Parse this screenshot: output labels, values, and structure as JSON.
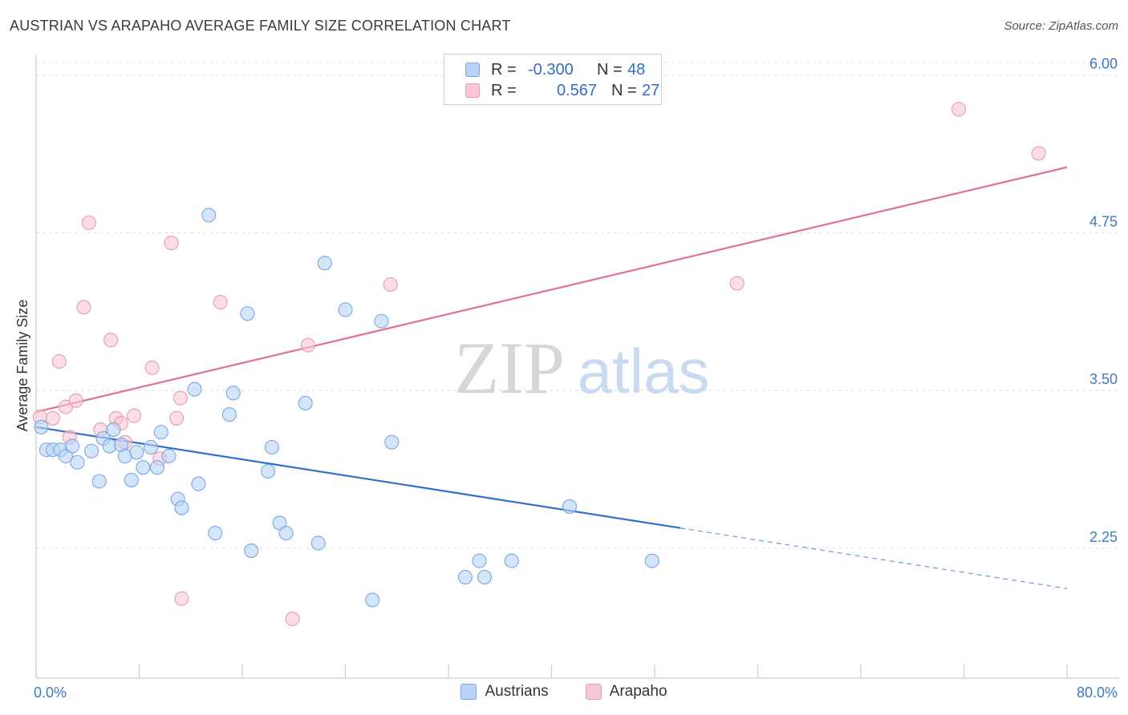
{
  "title": "AUSTRIAN VS ARAPAHO AVERAGE FAMILY SIZE CORRELATION CHART",
  "source": "Source: ZipAtlas.com",
  "watermark": {
    "zip": "ZIP",
    "atlas": "atlas"
  },
  "legend": {
    "rows": [
      {
        "r_label": "R =",
        "r_value": "-0.300",
        "n_label": "N =",
        "n_value": "48"
      },
      {
        "r_label": "R =",
        "r_value": "0.567",
        "n_label": "N =",
        "n_value": "27"
      }
    ]
  },
  "bottom_legend": [
    "Austrians",
    "Arapaho"
  ],
  "colors": {
    "austrians_fill": "#b8d3f5",
    "austrians_stroke": "#7aa7e0",
    "austrians_line": "#2f6fd0",
    "arapaho_fill": "#f8c6d6",
    "arapaho_stroke": "#e89ab3",
    "arapaho_line": "#e0709a",
    "tick_label": "#3f78c8",
    "grid": "#dddddd"
  },
  "chart_data": {
    "type": "scatter",
    "xlabel": "",
    "ylabel": "Average Family Size",
    "xlim": [
      0,
      80
    ],
    "ylim": [
      1.22,
      6.1
    ],
    "x_tick_labels": [
      {
        "value": 0,
        "label": "0.0%"
      },
      {
        "value": 80,
        "label": "80.0%"
      }
    ],
    "y_ticks": [
      {
        "value": 2.25,
        "label": "2.25"
      },
      {
        "value": 3.5,
        "label": "3.50"
      },
      {
        "value": 4.75,
        "label": "4.75"
      },
      {
        "value": 6.0,
        "label": "6.00"
      }
    ],
    "grid": true,
    "series": [
      {
        "name": "Austrians",
        "points": [
          [
            0.4,
            3.21
          ],
          [
            0.8,
            3.03
          ],
          [
            1.3,
            3.03
          ],
          [
            1.9,
            3.03
          ],
          [
            2.3,
            2.98
          ],
          [
            2.8,
            3.06
          ],
          [
            3.2,
            2.93
          ],
          [
            4.3,
            3.02
          ],
          [
            4.9,
            2.78
          ],
          [
            5.2,
            3.12
          ],
          [
            5.7,
            3.06
          ],
          [
            6.0,
            3.19
          ],
          [
            6.6,
            3.07
          ],
          [
            6.9,
            2.98
          ],
          [
            7.4,
            2.79
          ],
          [
            7.8,
            3.01
          ],
          [
            8.3,
            2.89
          ],
          [
            8.9,
            3.05
          ],
          [
            9.4,
            2.89
          ],
          [
            9.7,
            3.17
          ],
          [
            10.3,
            2.98
          ],
          [
            11.0,
            2.64
          ],
          [
            11.3,
            2.57
          ],
          [
            12.3,
            3.51
          ],
          [
            12.6,
            2.76
          ],
          [
            13.4,
            4.89
          ],
          [
            13.9,
            2.37
          ],
          [
            15.0,
            3.31
          ],
          [
            15.3,
            3.48
          ],
          [
            16.4,
            4.11
          ],
          [
            16.7,
            2.23
          ],
          [
            18.0,
            2.86
          ],
          [
            18.3,
            3.05
          ],
          [
            18.9,
            2.45
          ],
          [
            19.4,
            2.37
          ],
          [
            20.9,
            3.4
          ],
          [
            21.9,
            2.29
          ],
          [
            22.4,
            4.51
          ],
          [
            24.0,
            4.14
          ],
          [
            26.1,
            1.84
          ],
          [
            26.8,
            4.05
          ],
          [
            27.6,
            3.09
          ],
          [
            33.3,
            2.02
          ],
          [
            34.4,
            2.15
          ],
          [
            34.8,
            2.02
          ],
          [
            36.9,
            2.15
          ],
          [
            41.4,
            2.58
          ],
          [
            47.8,
            2.15
          ]
        ]
      },
      {
        "name": "Arapaho",
        "points": [
          [
            0.3,
            3.29
          ],
          [
            1.3,
            3.28
          ],
          [
            1.8,
            3.73
          ],
          [
            2.3,
            3.37
          ],
          [
            2.6,
            3.13
          ],
          [
            3.1,
            3.42
          ],
          [
            3.7,
            4.16
          ],
          [
            4.1,
            4.83
          ],
          [
            5.0,
            3.19
          ],
          [
            5.8,
            3.9
          ],
          [
            6.2,
            3.28
          ],
          [
            6.6,
            3.24
          ],
          [
            6.9,
            3.09
          ],
          [
            7.6,
            3.3
          ],
          [
            9.0,
            3.68
          ],
          [
            9.6,
            2.96
          ],
          [
            10.5,
            4.67
          ],
          [
            10.9,
            3.28
          ],
          [
            11.2,
            3.44
          ],
          [
            11.3,
            1.85
          ],
          [
            14.3,
            4.2
          ],
          [
            19.9,
            1.69
          ],
          [
            21.1,
            3.86
          ],
          [
            27.5,
            4.34
          ],
          [
            54.4,
            4.35
          ],
          [
            71.6,
            5.73
          ],
          [
            77.8,
            5.38
          ]
        ]
      }
    ],
    "trendlines": [
      {
        "name": "Austrians",
        "x0": 0,
        "y0": 3.21,
        "x1": 50.0,
        "y1": 2.41,
        "extend_to": 80,
        "extend_y": 1.93
      },
      {
        "name": "Arapaho",
        "x0": 0,
        "y0": 3.33,
        "x1": 80,
        "y1": 5.27
      }
    ]
  }
}
